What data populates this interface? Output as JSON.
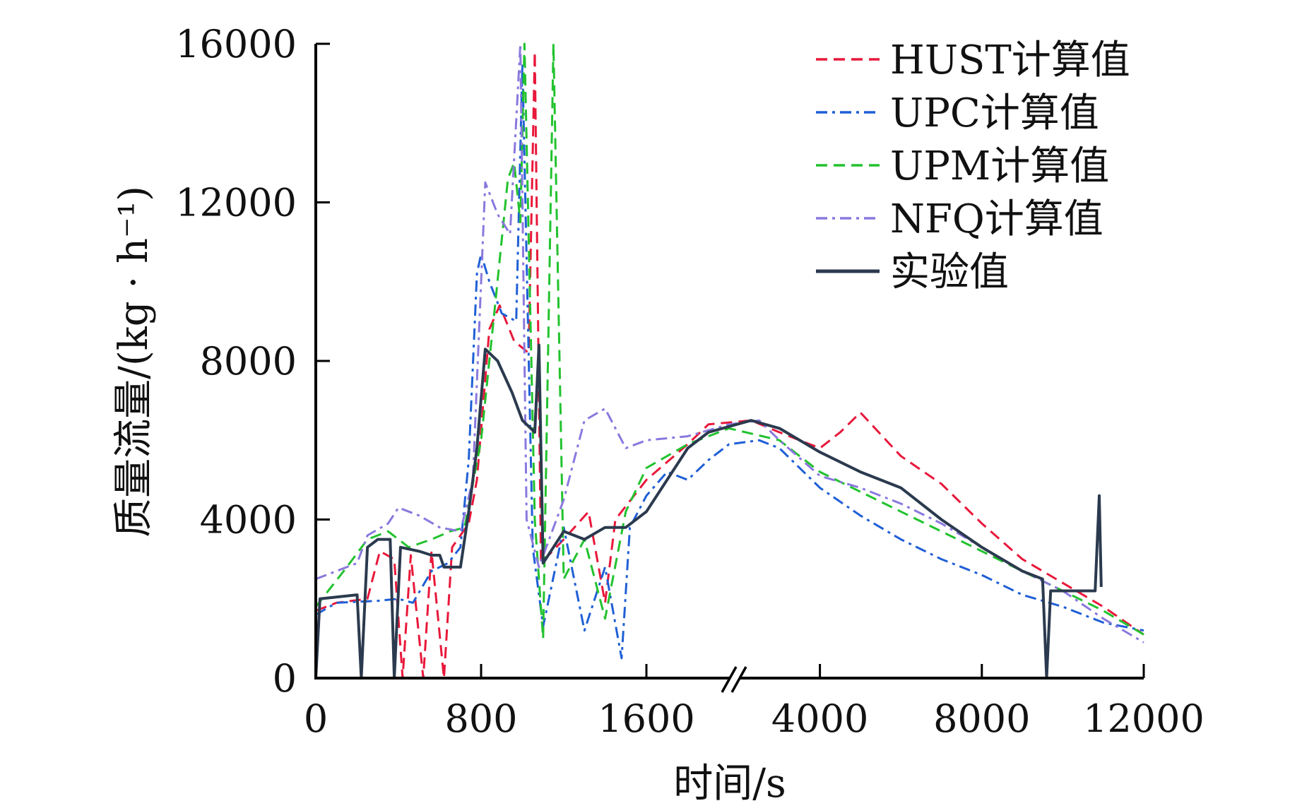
{
  "chart_data": {
    "type": "line",
    "xlabel": "时间/s",
    "ylabel": "质量流量/(kg · h⁻¹)",
    "ylim": [
      0,
      16000
    ],
    "x_axis_break": true,
    "x_ticks": [
      "0",
      "800",
      "1600",
      "4000",
      "8000",
      "12000"
    ],
    "y_ticks": [
      "0",
      "4000",
      "8000",
      "12000",
      "16000"
    ],
    "grid": false,
    "legend_position": "top-right",
    "series": [
      {
        "name": "HUST计算值",
        "color": "#e8183a",
        "dash": "dashed",
        "points": [
          [
            0,
            1700
          ],
          [
            100,
            1900
          ],
          [
            250,
            2000
          ],
          [
            310,
            3200
          ],
          [
            380,
            3000
          ],
          [
            420,
            0
          ],
          [
            460,
            3100
          ],
          [
            520,
            0
          ],
          [
            560,
            3200
          ],
          [
            620,
            0
          ],
          [
            660,
            3300
          ],
          [
            740,
            3900
          ],
          [
            780,
            5000
          ],
          [
            840,
            8800
          ],
          [
            890,
            9400
          ],
          [
            960,
            8500
          ],
          [
            1030,
            8200
          ],
          [
            1060,
            15800
          ],
          [
            1090,
            2900
          ],
          [
            1200,
            3500
          ],
          [
            1320,
            4200
          ],
          [
            1400,
            1900
          ],
          [
            1450,
            4000
          ],
          [
            1600,
            5000
          ],
          [
            1800,
            5900
          ],
          [
            1900,
            6400
          ],
          [
            2300,
            6500
          ],
          [
            3000,
            6200
          ],
          [
            4000,
            5800
          ],
          [
            4500,
            6200
          ],
          [
            5000,
            6700
          ],
          [
            6000,
            5600
          ],
          [
            7000,
            4900
          ],
          [
            8000,
            3900
          ],
          [
            9000,
            3000
          ],
          [
            10000,
            2400
          ],
          [
            11000,
            1800
          ],
          [
            12000,
            1100
          ]
        ]
      },
      {
        "name": "UPC计算值",
        "color": "#1f5fd6",
        "dash": "dashdot",
        "points": [
          [
            0,
            1600
          ],
          [
            100,
            1900
          ],
          [
            300,
            1950
          ],
          [
            400,
            2000
          ],
          [
            470,
            1900
          ],
          [
            560,
            2700
          ],
          [
            640,
            2900
          ],
          [
            700,
            3300
          ],
          [
            740,
            5500
          ],
          [
            780,
            10200
          ],
          [
            800,
            10700
          ],
          [
            840,
            10000
          ],
          [
            900,
            9200
          ],
          [
            970,
            9000
          ],
          [
            1000,
            15500
          ],
          [
            1050,
            3300
          ],
          [
            1100,
            1300
          ],
          [
            1200,
            3800
          ],
          [
            1300,
            1200
          ],
          [
            1400,
            2800
          ],
          [
            1480,
            500
          ],
          [
            1520,
            3800
          ],
          [
            1600,
            4600
          ],
          [
            1700,
            5200
          ],
          [
            1800,
            5000
          ],
          [
            1900,
            5500
          ],
          [
            2000,
            5900
          ],
          [
            2500,
            6000
          ],
          [
            3000,
            5800
          ],
          [
            4000,
            4800
          ],
          [
            5000,
            4100
          ],
          [
            6000,
            3500
          ],
          [
            7000,
            3000
          ],
          [
            8000,
            2600
          ],
          [
            9000,
            2100
          ],
          [
            10000,
            1800
          ],
          [
            11000,
            1400
          ],
          [
            12000,
            1200
          ]
        ]
      },
      {
        "name": "UPM计算值",
        "color": "#22c22e",
        "dash": "dashed",
        "points": [
          [
            0,
            1800
          ],
          [
            150,
            2800
          ],
          [
            250,
            3500
          ],
          [
            350,
            3700
          ],
          [
            450,
            3300
          ],
          [
            560,
            3500
          ],
          [
            650,
            3700
          ],
          [
            720,
            3800
          ],
          [
            800,
            6000
          ],
          [
            860,
            9000
          ],
          [
            930,
            12600
          ],
          [
            960,
            13000
          ],
          [
            990,
            11500
          ],
          [
            1010,
            16000
          ],
          [
            1060,
            4000
          ],
          [
            1100,
            1000
          ],
          [
            1150,
            16000
          ],
          [
            1200,
            2500
          ],
          [
            1300,
            3500
          ],
          [
            1400,
            1500
          ],
          [
            1500,
            4200
          ],
          [
            1600,
            5300
          ],
          [
            1800,
            5900
          ],
          [
            2000,
            6300
          ],
          [
            3000,
            6000
          ],
          [
            4000,
            5200
          ],
          [
            5000,
            4700
          ],
          [
            6000,
            4200
          ],
          [
            7000,
            3700
          ],
          [
            8000,
            3200
          ],
          [
            9000,
            2700
          ],
          [
            10000,
            2200
          ],
          [
            11000,
            1700
          ],
          [
            12000,
            1100
          ]
        ]
      },
      {
        "name": "NFQ计算值",
        "color": "#8a78dd",
        "dash": "dashdot",
        "points": [
          [
            0,
            2500
          ],
          [
            100,
            2700
          ],
          [
            200,
            2900
          ],
          [
            250,
            3600
          ],
          [
            350,
            3900
          ],
          [
            400,
            4300
          ],
          [
            500,
            4100
          ],
          [
            600,
            3800
          ],
          [
            700,
            3700
          ],
          [
            760,
            5000
          ],
          [
            820,
            12500
          ],
          [
            880,
            11700
          ],
          [
            940,
            11200
          ],
          [
            990,
            16000
          ],
          [
            1020,
            4000
          ],
          [
            1080,
            2800
          ],
          [
            1200,
            4500
          ],
          [
            1300,
            6500
          ],
          [
            1400,
            6800
          ],
          [
            1500,
            5800
          ],
          [
            1600,
            6000
          ],
          [
            1800,
            6100
          ],
          [
            2000,
            6400
          ],
          [
            2500,
            6500
          ],
          [
            3000,
            6000
          ],
          [
            4000,
            5100
          ],
          [
            5000,
            4800
          ],
          [
            6000,
            4400
          ],
          [
            7000,
            3900
          ],
          [
            8000,
            3300
          ],
          [
            9000,
            2700
          ],
          [
            10000,
            2200
          ],
          [
            11000,
            1500
          ],
          [
            12000,
            900
          ]
        ]
      },
      {
        "name": "实验值",
        "color": "#2b3a4e",
        "dash": "solid",
        "points": [
          [
            0,
            0
          ],
          [
            20,
            2000
          ],
          [
            200,
            2100
          ],
          [
            220,
            0
          ],
          [
            250,
            3300
          ],
          [
            300,
            3500
          ],
          [
            360,
            3500
          ],
          [
            380,
            0
          ],
          [
            410,
            3300
          ],
          [
            500,
            3200
          ],
          [
            560,
            3100
          ],
          [
            600,
            3100
          ],
          [
            620,
            2800
          ],
          [
            700,
            2800
          ],
          [
            740,
            4200
          ],
          [
            780,
            5800
          ],
          [
            820,
            8300
          ],
          [
            880,
            8000
          ],
          [
            950,
            7200
          ],
          [
            1000,
            6500
          ],
          [
            1060,
            6200
          ],
          [
            1080,
            8400
          ],
          [
            1100,
            2900
          ],
          [
            1200,
            3700
          ],
          [
            1300,
            3500
          ],
          [
            1400,
            3800
          ],
          [
            1500,
            3800
          ],
          [
            1600,
            4200
          ],
          [
            1800,
            5800
          ],
          [
            1900,
            6200
          ],
          [
            2300,
            6500
          ],
          [
            3000,
            6300
          ],
          [
            4000,
            5700
          ],
          [
            5000,
            5200
          ],
          [
            6000,
            4800
          ],
          [
            7000,
            4000
          ],
          [
            8000,
            3300
          ],
          [
            9000,
            2700
          ],
          [
            9500,
            2500
          ],
          [
            9600,
            0
          ],
          [
            9700,
            2200
          ],
          [
            10500,
            2200
          ],
          [
            10800,
            2200
          ],
          [
            10900,
            4600
          ],
          [
            10950,
            2300
          ]
        ]
      }
    ]
  }
}
